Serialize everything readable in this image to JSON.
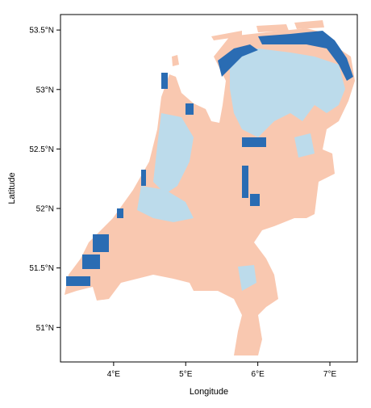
{
  "chart_data": {
    "type": "map",
    "xlabel": "Longitude",
    "ylabel": "Latitude",
    "xlim": [
      3.263,
      7.38
    ],
    "ylim": [
      50.71,
      53.63
    ],
    "xticks": [
      {
        "value": 4,
        "label": "4°E"
      },
      {
        "value": 5,
        "label": "5°E"
      },
      {
        "value": 6,
        "label": "6°E"
      },
      {
        "value": 7,
        "label": "7°E"
      }
    ],
    "yticks": [
      {
        "value": 51,
        "label": "51°N"
      },
      {
        "value": 51.5,
        "label": "51.5°N"
      },
      {
        "value": 52,
        "label": "52°N"
      },
      {
        "value": 52.5,
        "label": "52.5°N"
      },
      {
        "value": 53,
        "label": "53°N"
      },
      {
        "value": 53.5,
        "label": "53.5°N"
      }
    ]
  }
}
